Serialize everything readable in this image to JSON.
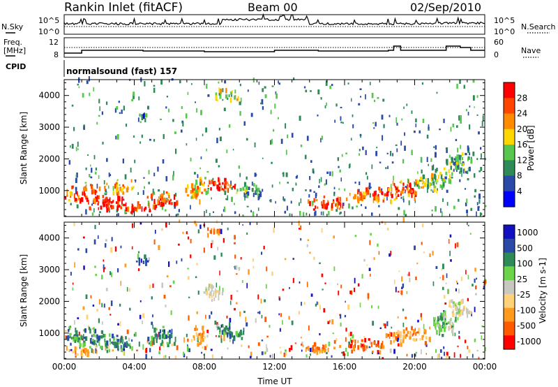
{
  "header": {
    "station": "Rankin Inlet (fitACF)",
    "beam": "Beam 00",
    "date": "02/Sep/2010"
  },
  "summary_panels": {
    "nsky_label": "N.Sky",
    "nsky_ticks": [
      "10^5",
      "10^0"
    ],
    "nsearch_label": "N.Search",
    "nsearch_ticks": [
      "10^5",
      "10^0"
    ],
    "freq_label_1": "Freq.",
    "freq_label_2": "[MHz]",
    "freq_ticks": [
      "12",
      "8"
    ],
    "nave_label": "Nave",
    "nave_ticks": [
      "60",
      "0"
    ],
    "cpid_label": "CPID",
    "cpid_value": "normalsound (fast) 157"
  },
  "colors": {
    "power_scale": [
      "#0000ff",
      "#2b4aa8",
      "#2e8b57",
      "#57c84d",
      "#ffd700",
      "#ff8c00",
      "#ff4500",
      "#ff0000"
    ],
    "velocity_scale": [
      "#ff0000",
      "#ff5a00",
      "#ff9a1a",
      "#ffd27a",
      "#c8c8c0",
      "#6cd44a",
      "#2e8b57",
      "#2b4aa8",
      "#1010c0"
    ]
  },
  "chart_data": [
    {
      "type": "heatmap",
      "name": "power",
      "ylabel": "Slant Range [km]",
      "xlabel": "",
      "xlim": [
        "00:00",
        "24:00"
      ],
      "ylim": [
        180,
        4500
      ],
      "y_ticks": [
        "1000",
        "2000",
        "3000",
        "4000"
      ],
      "colorbar_label": "Power [dB]",
      "colorbar_ticks": [
        "28",
        "24",
        "20",
        "16",
        "12",
        "8",
        "4"
      ],
      "colorbar_range": [
        0,
        30
      ],
      "blobs": [
        {
          "t": 1.0,
          "r": 900,
          "dt": 1.2,
          "dr": 300,
          "level": 24
        },
        {
          "t": 2.5,
          "r": 600,
          "dt": 1.5,
          "dr": 250,
          "level": 28
        },
        {
          "t": 4.0,
          "r": 450,
          "dt": 1.2,
          "dr": 180,
          "level": 28
        },
        {
          "t": 3.0,
          "r": 1100,
          "dt": 1.0,
          "dr": 250,
          "level": 20
        },
        {
          "t": 5.5,
          "r": 700,
          "dt": 1.0,
          "dr": 300,
          "level": 24
        },
        {
          "t": 7.5,
          "r": 1000,
          "dt": 0.8,
          "dr": 400,
          "level": 18
        },
        {
          "t": 9.0,
          "r": 1200,
          "dt": 0.9,
          "dr": 300,
          "level": 26
        },
        {
          "t": 10.5,
          "r": 1000,
          "dt": 0.8,
          "dr": 300,
          "level": 10
        },
        {
          "t": 15.0,
          "r": 600,
          "dt": 1.2,
          "dr": 250,
          "level": 26
        },
        {
          "t": 17.5,
          "r": 800,
          "dt": 1.5,
          "dr": 300,
          "level": 22
        },
        {
          "t": 19.5,
          "r": 1000,
          "dt": 1.2,
          "dr": 300,
          "level": 24
        },
        {
          "t": 21.0,
          "r": 1300,
          "dt": 1.2,
          "dr": 400,
          "level": 14
        },
        {
          "t": 22.5,
          "r": 1900,
          "dt": 0.9,
          "dr": 500,
          "level": 10
        },
        {
          "t": 4.5,
          "r": 3300,
          "dt": 0.5,
          "dr": 150,
          "level": 8
        },
        {
          "t": 9.2,
          "r": 4000,
          "dt": 0.8,
          "dr": 250,
          "level": 14
        }
      ]
    },
    {
      "type": "heatmap",
      "name": "velocity",
      "ylabel": "Slant Range [km]",
      "xlabel": "Time UT",
      "xlim": [
        "00:00",
        "24:00"
      ],
      "ylim": [
        180,
        4500
      ],
      "x_ticks": [
        "00:00",
        "04:00",
        "08:00",
        "12:00",
        "16:00",
        "20:00",
        "00:00"
      ],
      "y_ticks": [
        "1000",
        "2000",
        "3000",
        "4000"
      ],
      "colorbar_label": "Velocity [m s-1]",
      "colorbar_ticks": [
        "1000",
        "500",
        "100",
        "25",
        "-25",
        "-100",
        "-500",
        "-1000"
      ],
      "colorbar_range": [
        -1000,
        1000
      ],
      "blobs": [
        {
          "t": 1.0,
          "r": 900,
          "dt": 1.5,
          "dr": 350,
          "level": 6
        },
        {
          "t": 3.0,
          "r": 700,
          "dt": 1.5,
          "dr": 300,
          "level": 6
        },
        {
          "t": 1.0,
          "r": 400,
          "dt": 1.0,
          "dr": 200,
          "level": 2
        },
        {
          "t": 5.5,
          "r": 900,
          "dt": 1.0,
          "dr": 350,
          "level": 6
        },
        {
          "t": 7.7,
          "r": 900,
          "dt": 0.6,
          "dr": 400,
          "level": 2
        },
        {
          "t": 9.5,
          "r": 1000,
          "dt": 1.0,
          "dr": 350,
          "level": 6
        },
        {
          "t": 14.5,
          "r": 500,
          "dt": 1.0,
          "dr": 200,
          "level": 2
        },
        {
          "t": 17.0,
          "r": 600,
          "dt": 1.5,
          "dr": 250,
          "level": 1
        },
        {
          "t": 19.5,
          "r": 900,
          "dt": 1.5,
          "dr": 300,
          "level": 2
        },
        {
          "t": 21.5,
          "r": 1300,
          "dt": 1.2,
          "dr": 400,
          "level": 5
        },
        {
          "t": 22.5,
          "r": 1800,
          "dt": 0.8,
          "dr": 400,
          "level": 4
        },
        {
          "t": 8.5,
          "r": 2300,
          "dt": 0.8,
          "dr": 300,
          "level": 4
        },
        {
          "t": 4.5,
          "r": 3300,
          "dt": 0.5,
          "dr": 150,
          "level": 7
        },
        {
          "t": 8.5,
          "r": 4200,
          "dt": 0.6,
          "dr": 200,
          "level": 2
        }
      ]
    }
  ]
}
